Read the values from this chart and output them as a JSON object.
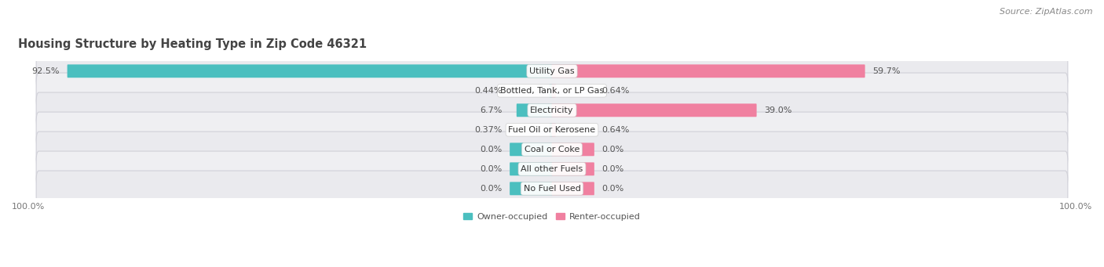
{
  "title": "Housing Structure by Heating Type in Zip Code 46321",
  "source": "Source: ZipAtlas.com",
  "categories": [
    "Utility Gas",
    "Bottled, Tank, or LP Gas",
    "Electricity",
    "Fuel Oil or Kerosene",
    "Coal or Coke",
    "All other Fuels",
    "No Fuel Used"
  ],
  "owner_values": [
    92.5,
    0.44,
    6.7,
    0.37,
    0.0,
    0.0,
    0.0
  ],
  "renter_values": [
    59.7,
    0.64,
    39.0,
    0.64,
    0.0,
    0.0,
    0.0
  ],
  "owner_color": "#4bbfbf",
  "renter_color": "#f080a0",
  "row_bg_color": "#e8e8ec",
  "row_inner_color": "#f5f5f8",
  "label_color": "#666666",
  "title_color": "#444444",
  "max_value": 100.0,
  "bar_height": 0.52,
  "title_fontsize": 10.5,
  "label_fontsize": 8.0,
  "cat_fontsize": 8.0,
  "tick_fontsize": 8.0,
  "source_fontsize": 8.0,
  "owner_label_fmt": [
    "92.5%",
    "0.44%",
    "6.7%",
    "0.37%",
    "0.0%",
    "0.0%",
    "0.0%"
  ],
  "renter_label_fmt": [
    "59.7%",
    "0.64%",
    "39.0%",
    "0.64%",
    "0.0%",
    "0.0%",
    "0.0%"
  ]
}
